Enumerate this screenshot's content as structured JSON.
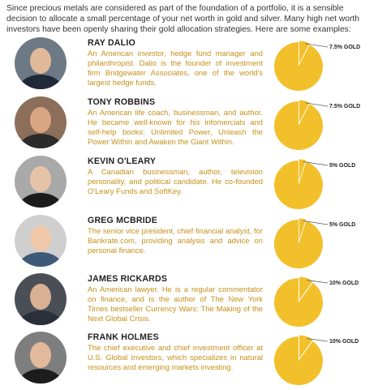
{
  "intro": "Since precious metals are considered as part of the foundation of a portfolio, it is a sensible decision to allocate a small percentage of your net worth in gold and silver. Many high net worth investors have been openly sharing their gold allocation strategies. Here are some examples:",
  "colors": {
    "pie_fill": "#f2c02a",
    "description_text": "#c4911a",
    "name_text": "#222222"
  },
  "people": [
    {
      "name": "RAY DALIO",
      "description": "An American investor, hedge fund manager and philanthropist. Dalio is the founder of investment firm Bridgewater Associates, one of the world's largest hedge funds.",
      "gold_label": "7.5% GOLD",
      "gold_percent": 7.5
    },
    {
      "name": "TONY ROBBINS",
      "description": "An American life coach, businessman, and author. He became well-known for his infomercials and self-help books: Unlimited Power, Unleash the Power Within and Awaken the Giant Within.",
      "gold_label": "7.5% GOLD",
      "gold_percent": 7.5
    },
    {
      "name": "KEVIN O'LEARY",
      "description": "A Canadian businessman, author, television personality, and political candidate. He co-founded O'Leary Funds and SoftKey.",
      "gold_label": "5% GOLD",
      "gold_percent": 5
    },
    {
      "name": "GREG MCBRIDE",
      "description": "The senior vice president, chief financial analyst, for Bankrate.com, providing analysis and advice on personal finance.",
      "gold_label": "5% GOLD",
      "gold_percent": 5
    },
    {
      "name": "JAMES RICKARDS",
      "description": "An American lawyer. He is a regular commentator on finance, and is the author of The New York Times bestseller Currency Wars: The Making of the Next Global Crisis.",
      "gold_label": "10% GOLD",
      "gold_percent": 10
    },
    {
      "name": "FRANK HOLMES",
      "description": "The chief executive and chief investment officer at U.S. Global Investors, which specializes in natural resources and emerging markets investing.",
      "gold_label": "10% GOLD",
      "gold_percent": 10
    }
  ]
}
